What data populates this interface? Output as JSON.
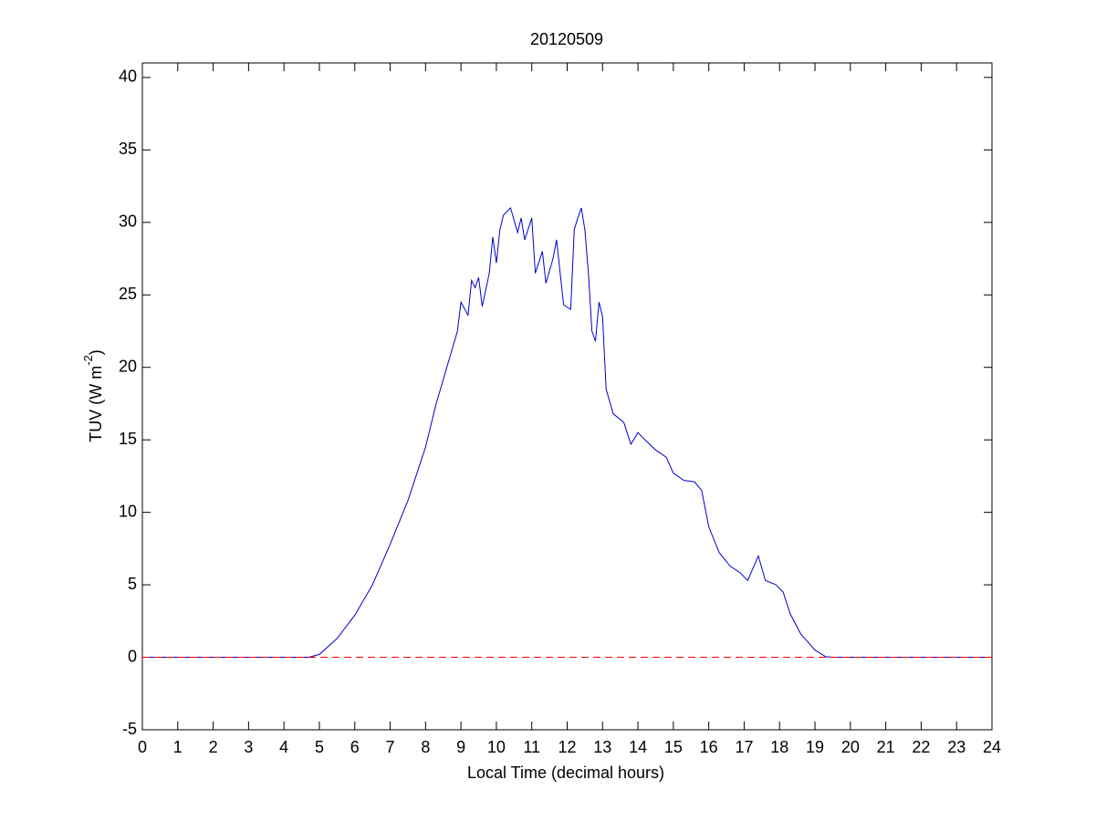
{
  "chart_data": {
    "type": "line",
    "title": "20120509",
    "xlabel": "Local Time (decimal hours)",
    "ylabel": [
      "TUV (W m",
      "-2",
      ")"
    ],
    "xlim": [
      0,
      24
    ],
    "xticks": [
      0,
      1,
      2,
      3,
      4,
      5,
      6,
      7,
      8,
      9,
      10,
      11,
      12,
      13,
      14,
      15,
      16,
      17,
      18,
      19,
      20,
      21,
      22,
      23,
      24
    ],
    "ylim": [
      -5,
      41
    ],
    "yticks": [
      -5,
      0,
      5,
      10,
      15,
      20,
      25,
      30,
      35,
      40
    ],
    "grid": false,
    "reference_line": {
      "value": 0,
      "color": "#ff0000",
      "style": "dashed"
    },
    "series": [
      {
        "color": "#0000cc",
        "x": [
          0,
          4.7,
          5.0,
          5.5,
          6.0,
          6.5,
          7.0,
          7.5,
          8.0,
          8.3,
          8.6,
          8.9,
          9.0,
          9.2,
          9.3,
          9.4,
          9.5,
          9.6,
          9.8,
          9.9,
          10.0,
          10.1,
          10.2,
          10.4,
          10.6,
          10.7,
          10.8,
          11.0,
          11.1,
          11.3,
          11.4,
          11.6,
          11.7,
          11.9,
          12.1,
          12.2,
          12.3,
          12.4,
          12.5,
          12.6,
          12.7,
          12.8,
          12.9,
          13.0,
          13.1,
          13.3,
          13.6,
          13.8,
          14.0,
          14.2,
          14.5,
          14.8,
          15.0,
          15.3,
          15.6,
          15.8,
          16.0,
          16.3,
          16.6,
          16.9,
          17.1,
          17.4,
          17.6,
          17.9,
          18.1,
          18.3,
          18.6,
          19.0,
          19.3,
          19.5,
          24
        ],
        "values": [
          0,
          0,
          0.2,
          1.3,
          2.9,
          5.0,
          7.8,
          10.8,
          14.5,
          17.5,
          20,
          22.5,
          24.5,
          23.6,
          26,
          25.5,
          26.2,
          24.2,
          26.5,
          29,
          27.2,
          29.5,
          30.5,
          31,
          29.3,
          30.3,
          28.8,
          30.3,
          26.5,
          28.0,
          25.8,
          27.5,
          28.8,
          24.3,
          24.0,
          29.5,
          30.3,
          31,
          29.5,
          26.5,
          22.5,
          21.8,
          24.5,
          23.5,
          18.5,
          16.8,
          16.2,
          14.7,
          15.5,
          15.0,
          14.3,
          13.8,
          12.7,
          12.2,
          12.1,
          11.5,
          9.0,
          7.2,
          6.3,
          5.8,
          5.3,
          7.0,
          5.3,
          5.0,
          4.5,
          3.0,
          1.6,
          0.5,
          0.05,
          0,
          0
        ]
      }
    ]
  }
}
